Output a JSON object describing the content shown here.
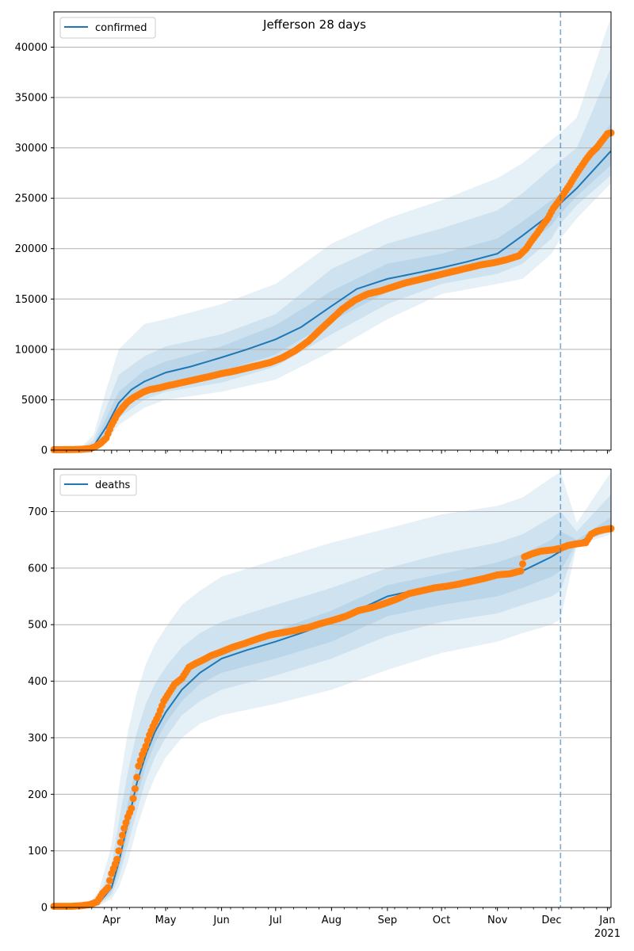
{
  "title": "Jefferson 28 days",
  "colors": {
    "model_line": "#1f77b4",
    "band": "#1f77b4",
    "observed": "#ff7f0e",
    "grid": "#b0b0b0",
    "forecast_marker": "#1f77b4"
  },
  "x_axis": {
    "start": "2020-02-29",
    "end": "2021-01-03",
    "month_labels": [
      {
        "date": "2020-04-01",
        "label": "Apr"
      },
      {
        "date": "2020-05-01",
        "label": "May"
      },
      {
        "date": "2020-06-01",
        "label": "Jun"
      },
      {
        "date": "2020-07-01",
        "label": "Jul"
      },
      {
        "date": "2020-08-01",
        "label": "Aug"
      },
      {
        "date": "2020-09-01",
        "label": "Sep"
      },
      {
        "date": "2020-10-01",
        "label": "Oct"
      },
      {
        "date": "2020-11-01",
        "label": "Nov"
      },
      {
        "date": "2020-12-01",
        "label": "Dec"
      },
      {
        "date": "2021-01-01",
        "label": "Jan"
      }
    ],
    "year_label": {
      "date": "2021-01-01",
      "label": "2021"
    },
    "forecast_start": "2020-12-06"
  },
  "chart_data": [
    {
      "type": "line",
      "legend": {
        "label": "confirmed",
        "placement": "top-left"
      },
      "grid": "y",
      "ylim": [
        0,
        43500
      ],
      "yticks": [
        0,
        5000,
        10000,
        15000,
        20000,
        25000,
        30000,
        35000,
        40000
      ],
      "model": {
        "x": [
          "2020-02-29",
          "2020-03-15",
          "2020-03-22",
          "2020-03-29",
          "2020-04-05",
          "2020-04-12",
          "2020-04-19",
          "2020-05-01",
          "2020-05-15",
          "2020-06-01",
          "2020-06-15",
          "2020-07-01",
          "2020-07-15",
          "2020-08-01",
          "2020-08-15",
          "2020-09-01",
          "2020-09-15",
          "2020-10-01",
          "2020-10-15",
          "2020-11-01",
          "2020-11-15",
          "2020-12-01",
          "2020-12-06",
          "2020-12-15",
          "2021-01-03"
        ],
        "y": [
          0,
          80,
          400,
          2300,
          4700,
          6000,
          6800,
          7700,
          8300,
          9200,
          10000,
          11000,
          12200,
          14300,
          16000,
          17000,
          17500,
          18100,
          18700,
          19500,
          21300,
          23500,
          24500,
          26000,
          29700
        ]
      },
      "bands": [
        {
          "x": [
            "2020-02-29",
            "2020-03-15",
            "2020-03-22",
            "2020-03-29",
            "2020-04-05",
            "2020-04-19",
            "2020-05-01",
            "2020-06-01",
            "2020-07-01",
            "2020-08-01",
            "2020-09-01",
            "2020-10-01",
            "2020-11-01",
            "2020-11-15",
            "2020-12-01",
            "2020-12-06",
            "2020-12-15",
            "2021-01-03"
          ],
          "lower": [
            0,
            20,
            150,
            900,
            2500,
            4200,
            5000,
            5800,
            7000,
            9800,
            13000,
            15500,
            16500,
            17000,
            19500,
            21000,
            23000,
            26500
          ],
          "upper": [
            0,
            300,
            1500,
            6000,
            10000,
            12500,
            13000,
            14500,
            16500,
            20500,
            23000,
            24800,
            27000,
            28500,
            30800,
            31500,
            33000,
            43000
          ]
        },
        {
          "x": [
            "2020-02-29",
            "2020-03-15",
            "2020-03-22",
            "2020-03-29",
            "2020-04-05",
            "2020-04-19",
            "2020-05-01",
            "2020-06-01",
            "2020-07-01",
            "2020-08-01",
            "2020-09-01",
            "2020-10-01",
            "2020-11-01",
            "2020-11-15",
            "2020-12-01",
            "2020-12-06",
            "2020-12-15",
            "2021-01-03"
          ],
          "lower": [
            0,
            40,
            250,
            1300,
            3200,
            5000,
            5800,
            6700,
            8300,
            11500,
            14500,
            16500,
            17500,
            18500,
            21000,
            22500,
            24300,
            27300
          ],
          "upper": [
            0,
            200,
            1000,
            4200,
            7500,
            9300,
            10300,
            11500,
            13500,
            18000,
            20500,
            22000,
            23800,
            25500,
            28000,
            28700,
            30000,
            38000
          ]
        },
        {
          "x": [
            "2020-02-29",
            "2020-03-15",
            "2020-03-22",
            "2020-03-29",
            "2020-04-05",
            "2020-04-19",
            "2020-05-01",
            "2020-06-01",
            "2020-07-01",
            "2020-08-01",
            "2020-09-01",
            "2020-10-01",
            "2020-11-01",
            "2020-11-15",
            "2020-12-01",
            "2020-12-06",
            "2020-12-15",
            "2021-01-03"
          ],
          "lower": [
            0,
            60,
            320,
            1800,
            3900,
            5800,
            6700,
            7800,
            9500,
            12800,
            15700,
            17300,
            18500,
            20000,
            22300,
            23500,
            25200,
            28300
          ],
          "upper": [
            0,
            110,
            600,
            3200,
            5800,
            7900,
            8800,
            10300,
            12400,
            15800,
            18500,
            19500,
            21000,
            22700,
            24800,
            25500,
            27300,
            32500
          ]
        }
      ],
      "observed": {
        "x": [
          "2020-02-29",
          "2020-03-05",
          "2020-03-10",
          "2020-03-15",
          "2020-03-20",
          "2020-03-23",
          "2020-03-26",
          "2020-03-29",
          "2020-04-01",
          "2020-04-04",
          "2020-04-07",
          "2020-04-10",
          "2020-04-13",
          "2020-04-16",
          "2020-04-19",
          "2020-04-22",
          "2020-04-25",
          "2020-04-28",
          "2020-05-01",
          "2020-05-05",
          "2020-05-10",
          "2020-05-15",
          "2020-05-20",
          "2020-05-25",
          "2020-06-01",
          "2020-06-07",
          "2020-06-14",
          "2020-06-21",
          "2020-06-28",
          "2020-07-05",
          "2020-07-12",
          "2020-07-19",
          "2020-07-26",
          "2020-08-01",
          "2020-08-07",
          "2020-08-14",
          "2020-08-21",
          "2020-08-28",
          "2020-09-04",
          "2020-09-11",
          "2020-09-18",
          "2020-09-25",
          "2020-10-02",
          "2020-10-09",
          "2020-10-16",
          "2020-10-23",
          "2020-10-30",
          "2020-11-06",
          "2020-11-13",
          "2020-11-17",
          "2020-11-20",
          "2020-11-23",
          "2020-11-26",
          "2020-11-29",
          "2020-12-02",
          "2020-12-05",
          "2020-12-08",
          "2020-12-11",
          "2020-12-14",
          "2020-12-17",
          "2020-12-20",
          "2020-12-23",
          "2020-12-26",
          "2020-12-29",
          "2021-01-01",
          "2021-01-03"
        ],
        "y": [
          50,
          50,
          60,
          80,
          150,
          350,
          700,
          1200,
          2500,
          3500,
          4200,
          4800,
          5200,
          5500,
          5800,
          6000,
          6100,
          6200,
          6350,
          6500,
          6700,
          6900,
          7100,
          7300,
          7600,
          7800,
          8100,
          8400,
          8700,
          9200,
          9900,
          10800,
          12000,
          13000,
          14000,
          14900,
          15500,
          15800,
          16200,
          16600,
          16900,
          17200,
          17500,
          17800,
          18100,
          18400,
          18600,
          18900,
          19300,
          20000,
          20800,
          21500,
          22300,
          23000,
          24000,
          24700,
          25500,
          26300,
          27200,
          28000,
          28800,
          29500,
          30000,
          30700,
          31400,
          31500
        ]
      }
    },
    {
      "type": "line",
      "legend": {
        "label": "deaths",
        "placement": "top-left"
      },
      "grid": "y",
      "ylim": [
        0,
        775
      ],
      "yticks": [
        0,
        100,
        200,
        300,
        400,
        500,
        600,
        700
      ],
      "model": {
        "x": [
          "2020-02-29",
          "2020-03-20",
          "2020-03-25",
          "2020-04-01",
          "2020-04-05",
          "2020-04-10",
          "2020-04-15",
          "2020-04-20",
          "2020-04-25",
          "2020-05-01",
          "2020-05-10",
          "2020-05-20",
          "2020-06-01",
          "2020-06-15",
          "2020-07-01",
          "2020-07-15",
          "2020-08-01",
          "2020-08-15",
          "2020-09-01",
          "2020-09-15",
          "2020-10-01",
          "2020-10-15",
          "2020-11-01",
          "2020-11-15",
          "2020-12-01",
          "2020-12-06",
          "2020-12-15",
          "2021-01-03"
        ],
        "y": [
          0,
          2,
          8,
          35,
          80,
          150,
          220,
          270,
          310,
          345,
          385,
          415,
          440,
          455,
          470,
          485,
          505,
          525,
          550,
          560,
          565,
          575,
          585,
          595,
          620,
          630,
          645,
          670
        ]
      },
      "bands": [
        {
          "x": [
            "2020-02-29",
            "2020-03-20",
            "2020-03-25",
            "2020-04-01",
            "2020-04-05",
            "2020-04-10",
            "2020-04-15",
            "2020-04-20",
            "2020-04-25",
            "2020-05-01",
            "2020-05-10",
            "2020-05-20",
            "2020-06-01",
            "2020-07-01",
            "2020-08-01",
            "2020-09-01",
            "2020-10-01",
            "2020-11-01",
            "2020-11-15",
            "2020-12-01",
            "2020-12-06",
            "2020-12-15",
            "2021-01-03"
          ],
          "lower": [
            0,
            0,
            3,
            15,
            35,
            80,
            140,
            190,
            230,
            265,
            300,
            325,
            340,
            360,
            385,
            420,
            450,
            470,
            485,
            500,
            510,
            640,
            660
          ],
          "upper": [
            0,
            8,
            30,
            110,
            210,
            310,
            380,
            430,
            465,
            495,
            535,
            560,
            585,
            615,
            645,
            670,
            695,
            710,
            725,
            760,
            770,
            680,
            770
          ]
        },
        {
          "x": [
            "2020-02-29",
            "2020-03-20",
            "2020-03-25",
            "2020-04-01",
            "2020-04-05",
            "2020-04-10",
            "2020-04-15",
            "2020-04-20",
            "2020-04-25",
            "2020-05-01",
            "2020-05-10",
            "2020-05-20",
            "2020-06-01",
            "2020-07-01",
            "2020-08-01",
            "2020-09-01",
            "2020-10-01",
            "2020-11-01",
            "2020-11-15",
            "2020-12-01",
            "2020-12-06",
            "2020-12-15",
            "2021-01-03"
          ],
          "lower": [
            0,
            1,
            5,
            22,
            52,
            110,
            170,
            225,
            265,
            300,
            340,
            365,
            385,
            410,
            440,
            480,
            505,
            520,
            535,
            550,
            560,
            643,
            665
          ],
          "upper": [
            0,
            5,
            18,
            75,
            150,
            240,
            310,
            360,
            395,
            425,
            460,
            485,
            505,
            535,
            565,
            600,
            625,
            645,
            660,
            690,
            700,
            665,
            730
          ]
        },
        {
          "x": [
            "2020-02-29",
            "2020-03-20",
            "2020-03-25",
            "2020-04-01",
            "2020-04-05",
            "2020-04-10",
            "2020-04-15",
            "2020-04-20",
            "2020-04-25",
            "2020-05-01",
            "2020-05-10",
            "2020-05-20",
            "2020-06-01",
            "2020-07-01",
            "2020-08-01",
            "2020-09-01",
            "2020-10-01",
            "2020-11-01",
            "2020-11-15",
            "2020-12-01",
            "2020-12-06",
            "2020-12-15",
            "2021-01-03"
          ],
          "lower": [
            0,
            1,
            6,
            28,
            65,
            130,
            195,
            250,
            290,
            325,
            365,
            395,
            415,
            440,
            470,
            515,
            535,
            550,
            565,
            585,
            595,
            645,
            668
          ],
          "upper": [
            0,
            3,
            12,
            50,
            105,
            185,
            255,
            300,
            340,
            370,
            405,
            435,
            460,
            490,
            525,
            570,
            590,
            610,
            625,
            650,
            665,
            650,
            690
          ]
        }
      ],
      "observed": {
        "x": [
          "2020-02-29",
          "2020-03-05",
          "2020-03-10",
          "2020-03-15",
          "2020-03-20",
          "2020-03-24",
          "2020-03-27",
          "2020-03-30",
          "2020-04-01",
          "2020-04-04",
          "2020-04-06",
          "2020-04-08",
          "2020-04-10",
          "2020-04-12",
          "2020-04-14",
          "2020-04-16",
          "2020-04-18",
          "2020-04-20",
          "2020-04-22",
          "2020-04-24",
          "2020-04-27",
          "2020-04-30",
          "2020-05-03",
          "2020-05-06",
          "2020-05-10",
          "2020-05-14",
          "2020-05-18",
          "2020-05-22",
          "2020-05-26",
          "2020-06-01",
          "2020-06-07",
          "2020-06-14",
          "2020-06-21",
          "2020-06-28",
          "2020-07-05",
          "2020-07-12",
          "2020-07-19",
          "2020-07-26",
          "2020-08-02",
          "2020-08-09",
          "2020-08-16",
          "2020-08-23",
          "2020-08-30",
          "2020-09-06",
          "2020-09-13",
          "2020-09-20",
          "2020-09-27",
          "2020-10-04",
          "2020-10-11",
          "2020-10-18",
          "2020-10-25",
          "2020-11-01",
          "2020-11-08",
          "2020-11-14",
          "2020-11-16",
          "2020-11-20",
          "2020-11-25",
          "2020-12-01",
          "2020-12-06",
          "2020-12-10",
          "2020-12-15",
          "2020-12-20",
          "2020-12-23",
          "2020-12-26",
          "2020-12-30",
          "2021-01-03"
        ],
        "y": [
          2,
          2,
          2,
          3,
          5,
          10,
          25,
          35,
          60,
          85,
          115,
          140,
          160,
          175,
          210,
          250,
          270,
          285,
          305,
          320,
          340,
          365,
          380,
          395,
          405,
          425,
          432,
          438,
          445,
          452,
          460,
          467,
          475,
          482,
          486,
          490,
          495,
          502,
          508,
          515,
          525,
          530,
          537,
          545,
          555,
          560,
          565,
          568,
          572,
          577,
          582,
          588,
          590,
          595,
          620,
          625,
          630,
          632,
          635,
          640,
          643,
          645,
          660,
          665,
          668,
          670
        ]
      }
    }
  ]
}
